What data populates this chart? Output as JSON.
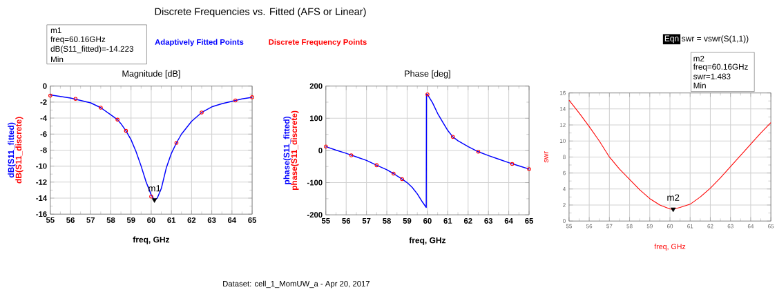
{
  "chart_data": [
    {
      "type": "line",
      "title": "Magnitude [dB]",
      "xlabel": "freq, GHz",
      "ylabel": "dB(S11_fitted)",
      "xlim": [
        55,
        65
      ],
      "ylim": [
        -16,
        0
      ],
      "xticks": [
        55,
        56,
        57,
        58,
        59,
        60,
        61,
        62,
        63,
        64,
        65
      ],
      "yticks": [
        -16,
        -14,
        -12,
        -10,
        -8,
        -6,
        -4,
        -2,
        0
      ],
      "grid": true,
      "legend": "top",
      "annotations": [
        "Discrete Frequencies vs. Fitted (AFS or Linear)",
        "m1",
        "freq=60.16GHz",
        "dB(S11_fitted)=-14.223",
        "Min",
        "dB(S11_discrete)",
        "Dataset: cell_1_MomUW_a - Apr 20, 2017",
        {
          "text": "m1",
          "x": 60.16,
          "y": -14.223
        }
      ],
      "series": [
        {
          "name": "Adaptively Fitted Points",
          "color": "#0000ff",
          "type": "line",
          "marker": "none",
          "x": [
            55,
            55.5,
            56,
            56.5,
            57,
            57.5,
            58,
            58.33,
            58.5,
            58.75,
            59,
            59.25,
            59.5,
            59.75,
            60,
            60.16,
            60.3,
            60.5,
            60.75,
            61,
            61.25,
            61.5,
            62,
            62.5,
            63,
            63.5,
            64,
            64.5,
            65
          ],
          "values": [
            -1.1,
            -1.3,
            -1.5,
            -1.8,
            -2.1,
            -2.7,
            -3.6,
            -4.2,
            -4.7,
            -5.6,
            -6.7,
            -8.2,
            -10.0,
            -12.0,
            -13.6,
            -14.223,
            -14.0,
            -12.8,
            -10.2,
            -8.4,
            -7.1,
            -6.0,
            -4.4,
            -3.3,
            -2.6,
            -2.2,
            -1.9,
            -1.6,
            -1.4
          ]
        },
        {
          "name": "Discrete Frequency Points",
          "color": "#ff0000",
          "type": "scatter",
          "marker": "circle",
          "x": [
            55,
            56.25,
            57.5,
            58.33,
            58.75,
            60,
            61.25,
            62.5,
            64.17,
            65
          ],
          "values": [
            -1.2,
            -1.6,
            -2.7,
            -4.2,
            -5.6,
            -13.8,
            -7.1,
            -3.3,
            -1.8,
            -1.4
          ]
        }
      ]
    },
    {
      "type": "line",
      "title": "Phase [deg]",
      "xlabel": "freq, GHz",
      "ylabel": "phase(S11_fitted)",
      "xlim": [
        55,
        65
      ],
      "ylim": [
        -200,
        200
      ],
      "xticks": [
        55,
        56,
        57,
        58,
        59,
        60,
        61,
        62,
        63,
        64,
        65
      ],
      "yticks": [
        -200,
        -100,
        0,
        100,
        200
      ],
      "grid": true,
      "annotations": [
        "phase(S11_discrete)"
      ],
      "series": [
        {
          "color": "#0000ff",
          "type": "line",
          "marker": "none",
          "x": [
            55,
            55.5,
            56,
            56.5,
            57,
            57.5,
            58,
            58.33,
            58.75,
            59,
            59.25,
            59.5,
            59.75,
            59.94,
            59.95,
            60,
            60.25,
            60.5,
            60.75,
            61,
            61.25,
            61.5,
            62,
            62.5,
            63,
            63.5,
            64,
            64.5,
            65
          ],
          "values": [
            12,
            1,
            -9,
            -20,
            -31,
            -46,
            -60,
            -72,
            -89,
            -100,
            -115,
            -135,
            -160,
            -177,
            175,
            174,
            148,
            115,
            88,
            62,
            42,
            30,
            12,
            -4,
            -16,
            -27,
            -38,
            -48,
            -58
          ]
        },
        {
          "color": "#ff0000",
          "type": "scatter",
          "marker": "circle",
          "x": [
            55,
            56.25,
            57.5,
            58.33,
            58.75,
            60,
            61.25,
            62.5,
            64.17,
            65
          ],
          "values": [
            12,
            -15,
            -46,
            -72,
            -89,
            174,
            42,
            -4,
            -42,
            -58
          ]
        }
      ]
    },
    {
      "type": "line",
      "xlabel": "freq, GHz",
      "ylabel": "swr",
      "xlim": [
        55,
        65
      ],
      "ylim": [
        0,
        16
      ],
      "xticks": [
        55,
        56,
        57,
        58,
        59,
        60,
        61,
        62,
        63,
        64,
        65
      ],
      "yticks": [
        0,
        2,
        4,
        6,
        8,
        10,
        12,
        14,
        16
      ],
      "grid": true,
      "annotations": [
        "Eqn",
        "swr = vswr(S(1,1))",
        "m2",
        "freq=60.16GHz",
        "swr=1.483",
        "Min",
        {
          "text": "m2",
          "x": 60.16,
          "y": 1.483
        }
      ],
      "series": [
        {
          "color": "#ff0000",
          "x": [
            55,
            55.5,
            56,
            56.5,
            57,
            57.5,
            58,
            58.5,
            59,
            59.5,
            60,
            60.16,
            60.5,
            61,
            61.5,
            62,
            62.5,
            63,
            63.5,
            64,
            64.5,
            65
          ],
          "values": [
            15.1,
            13.5,
            11.8,
            10.0,
            8.0,
            6.5,
            5.2,
            3.9,
            2.8,
            2.0,
            1.5,
            1.483,
            1.7,
            2.1,
            3.0,
            4.1,
            5.4,
            6.8,
            8.2,
            9.6,
            11.0,
            12.3
          ]
        }
      ]
    }
  ]
}
